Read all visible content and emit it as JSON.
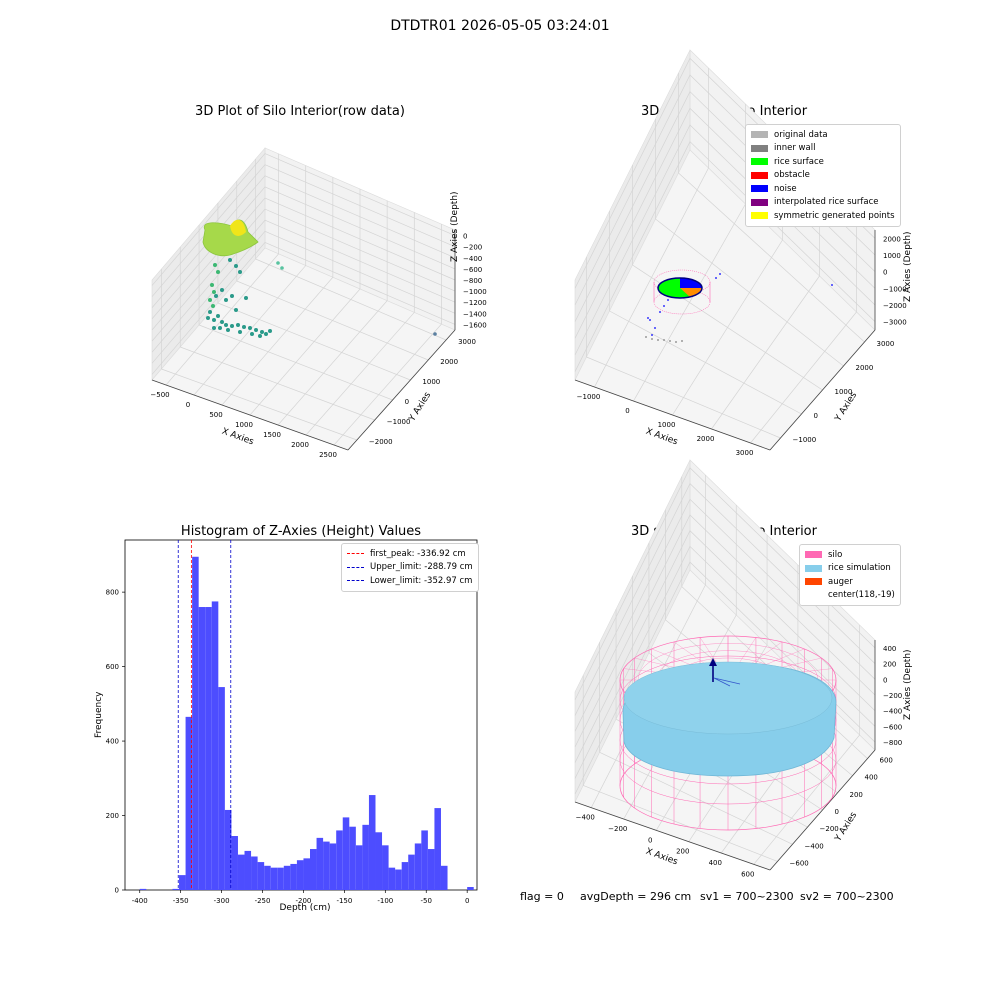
{
  "suptitle": "DTDTR01 2026-05-05 03:24:01",
  "chart_data": [
    {
      "type": "scatter",
      "title": "3D Plot of Silo Interior(row data)",
      "xlabel": "X Axies",
      "ylabel": "Y Axies",
      "zlabel": "Z Axies (Depth)",
      "xticks": [
        "−500",
        "0",
        "500",
        "1000",
        "1500",
        "2000",
        "2500"
      ],
      "yticks": [
        "−2000",
        "−1000",
        "0",
        "1000",
        "2000",
        "3000"
      ],
      "zticks": [
        "0",
        "−200",
        "−400",
        "−600",
        "−800",
        "−1000",
        "−1200",
        "−1400",
        "−1600"
      ],
      "xlim": [
        -600,
        2600
      ],
      "ylim": [
        -2200,
        3400
      ],
      "zlim": [
        -1650,
        50
      ],
      "colormap": "viridis",
      "grid": true
    },
    {
      "type": "scatter",
      "title": "3D classify of Silo Interior",
      "xlabel": "X Axies",
      "ylabel": "Y Axies",
      "zlabel": "Z Axies (Depth)",
      "xticks": [
        "−1000",
        "0",
        "1000",
        "2000",
        "3000"
      ],
      "yticks": [
        "−1000",
        "0",
        "1000",
        "2000",
        "3000"
      ],
      "zticks": [
        "2000",
        "1000",
        "0",
        "−1000",
        "−2000",
        "−3000"
      ],
      "legend_position": "top-right",
      "grid": true,
      "legend": [
        {
          "label": "original data",
          "color": "#b4b4b4"
        },
        {
          "label": "inner wall",
          "color": "#808080"
        },
        {
          "label": "rice surface",
          "color": "#00ff00"
        },
        {
          "label": "obstacle",
          "color": "#ff0000"
        },
        {
          "label": "noise",
          "color": "#0000ff"
        },
        {
          "label": "interpolated rice surface",
          "color": "#800080"
        },
        {
          "label": "symmetric generated points",
          "color": "#ffff00"
        }
      ]
    },
    {
      "type": "bar",
      "title": "Histogram of Z-Axies (Height) Values",
      "xlabel": "Depth (cm)",
      "ylabel": "Frequency",
      "xlim": [
        -418,
        12
      ],
      "ylim": [
        0,
        940
      ],
      "xticks": [
        -400,
        -350,
        -300,
        -250,
        -200,
        -150,
        -100,
        -50,
        0
      ],
      "yticks": [
        0,
        200,
        400,
        600,
        800
      ],
      "bin_width": 8,
      "bar_color": "#4d4dff",
      "bins": [
        {
          "x": -400,
          "value": 3
        },
        {
          "x": -360,
          "value": 3
        },
        {
          "x": -352,
          "value": 40
        },
        {
          "x": -344,
          "value": 465
        },
        {
          "x": -336,
          "value": 895
        },
        {
          "x": -328,
          "value": 760
        },
        {
          "x": -320,
          "value": 760
        },
        {
          "x": -312,
          "value": 775
        },
        {
          "x": -304,
          "value": 545
        },
        {
          "x": -296,
          "value": 215
        },
        {
          "x": -288,
          "value": 145
        },
        {
          "x": -280,
          "value": 95
        },
        {
          "x": -272,
          "value": 105
        },
        {
          "x": -264,
          "value": 90
        },
        {
          "x": -256,
          "value": 75
        },
        {
          "x": -248,
          "value": 65
        },
        {
          "x": -240,
          "value": 60
        },
        {
          "x": -232,
          "value": 60
        },
        {
          "x": -224,
          "value": 65
        },
        {
          "x": -216,
          "value": 70
        },
        {
          "x": -208,
          "value": 80
        },
        {
          "x": -200,
          "value": 85
        },
        {
          "x": -192,
          "value": 110
        },
        {
          "x": -184,
          "value": 140
        },
        {
          "x": -176,
          "value": 130
        },
        {
          "x": -168,
          "value": 125
        },
        {
          "x": -160,
          "value": 160
        },
        {
          "x": -152,
          "value": 195
        },
        {
          "x": -144,
          "value": 170
        },
        {
          "x": -136,
          "value": 120
        },
        {
          "x": -128,
          "value": 175
        },
        {
          "x": -120,
          "value": 255
        },
        {
          "x": -112,
          "value": 155
        },
        {
          "x": -104,
          "value": 120
        },
        {
          "x": -96,
          "value": 60
        },
        {
          "x": -88,
          "value": 55
        },
        {
          "x": -80,
          "value": 75
        },
        {
          "x": -72,
          "value": 95
        },
        {
          "x": -64,
          "value": 125
        },
        {
          "x": -56,
          "value": 160
        },
        {
          "x": -48,
          "value": 110
        },
        {
          "x": -40,
          "value": 220
        },
        {
          "x": -32,
          "value": 65
        },
        {
          "x": 0,
          "value": 8
        }
      ],
      "vlines": [
        {
          "label": "first_peak: -336.92 cm",
          "x": -336.92,
          "color": "#ff0000"
        },
        {
          "label": "Upper_limit: -288.79 cm",
          "x": -288.79,
          "color": "#0000cc"
        },
        {
          "label": "Lower_limit: -352.97 cm",
          "x": -352.97,
          "color": "#0000cc"
        }
      ],
      "legend_position": "top-right"
    },
    {
      "type": "scatter",
      "title": "3D simulation of Silo Interior",
      "xlabel": "X Axies",
      "ylabel": "Y Axies",
      "zlabel": "Z Axies (Depth)",
      "xticks": [
        "−400",
        "−200",
        "0",
        "200",
        "400",
        "600"
      ],
      "yticks": [
        "−600",
        "−400",
        "−200",
        "0",
        "200",
        "400",
        "600"
      ],
      "zticks": [
        "400",
        "200",
        "0",
        "−200",
        "−400",
        "−600",
        "−800"
      ],
      "legend_position": "top-right",
      "grid": true,
      "legend": [
        {
          "label": "silo",
          "color": "#ff69b4"
        },
        {
          "label": "rice simulation",
          "color": "#87ceeb"
        },
        {
          "label": "auger",
          "color": "#ff4500"
        },
        {
          "label": "center(118,-19)",
          "color": ""
        }
      ]
    }
  ],
  "footer": {
    "flag": "flag = 0",
    "avg": "avgDepth = 296 cm",
    "sv1": "sv1 = 700~2300",
    "sv2": "sv2 = 700~2300"
  }
}
